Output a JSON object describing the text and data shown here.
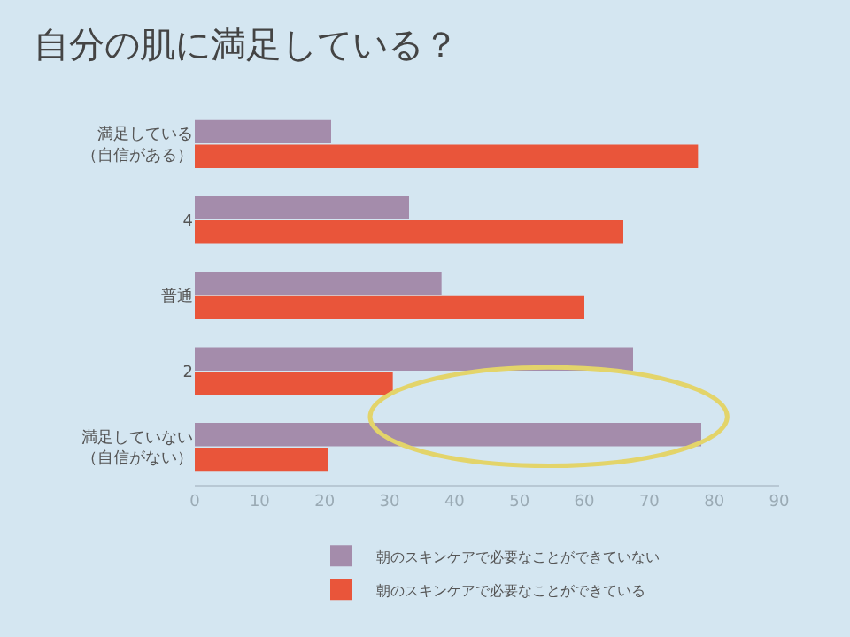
{
  "chart_data": {
    "type": "bar",
    "orientation": "horizontal",
    "title": "自分の肌に満足している？",
    "categories": [
      "満足している（自信がある）",
      "4",
      "普通",
      "2",
      "満足していない（自信がない）"
    ],
    "series": [
      {
        "name": "朝のスキンケアで必要なことができていない",
        "color": "#a48cab",
        "values": [
          21,
          33,
          38,
          67.5,
          78
        ]
      },
      {
        "name": "朝のスキンケアで必要なことができている",
        "color": "#e9553a",
        "values": [
          77.5,
          66,
          60,
          30.5,
          20.5
        ]
      }
    ],
    "xlim": [
      0,
      90
    ],
    "xticks": [
      0,
      10,
      20,
      30,
      40,
      50,
      60,
      70,
      80,
      90
    ],
    "grid": false,
    "legend": "bottom"
  }
}
